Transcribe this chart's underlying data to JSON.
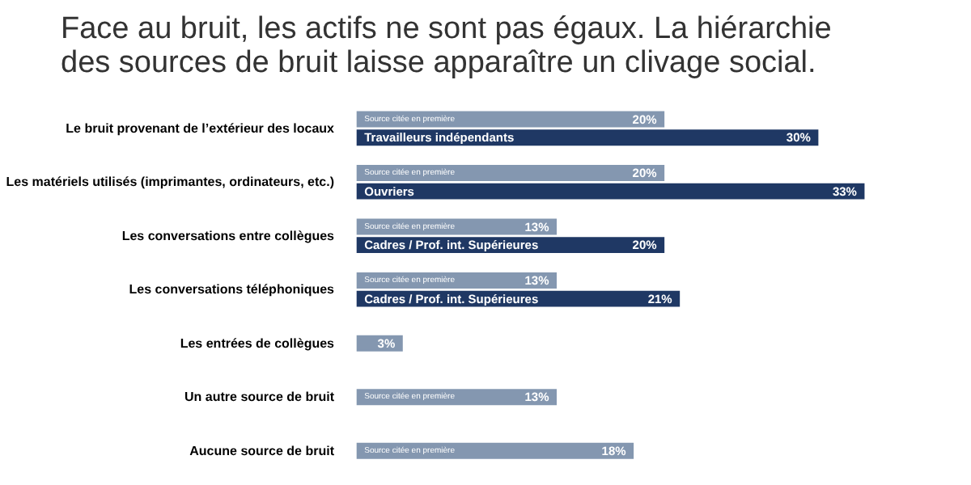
{
  "chart_data": {
    "type": "bar",
    "orientation": "horizontal",
    "title": "Face au bruit, les actifs ne sont pas égaux. La hiérarchie des sources de bruit laisse apparaître un clivage social.",
    "categories": [
      "Le bruit provenant de l’extérieur des locaux",
      "Les matériels utilisés (imprimantes, ordinateurs, etc.)",
      "Les conversations entre collègues",
      "Les conversations téléphoniques",
      "Les entrées de collègues",
      "Un autre source de bruit",
      "Aucune source de bruit"
    ],
    "series": [
      {
        "name": "Source citée en première",
        "color": "#8497b0",
        "values": [
          20,
          20,
          13,
          13,
          3,
          13,
          18
        ],
        "value_labels": [
          "20%",
          "20%",
          "13%",
          "13%",
          "3%",
          "13%",
          "18%"
        ]
      },
      {
        "color": "#1f3864",
        "values": [
          30,
          33,
          20,
          21,
          null,
          null,
          null
        ],
        "value_labels": [
          "30%",
          "33%",
          "20%",
          "21%",
          null,
          null,
          null
        ]
      }
    ],
    "annotations": [
      {
        "text": "Travailleurs indépendants",
        "y": "Le bruit provenant de l’extérieur des locaux"
      },
      {
        "text": "Ouvriers",
        "y": "Les matériels utilisés (imprimantes, ordinateurs, etc.)"
      },
      {
        "text": "Cadres / Prof. int. Supérieures",
        "y": "Les conversations entre collègues"
      },
      {
        "text": "Cadres / Prof. int. Supérieures",
        "y": "Les conversations téléphoniques"
      }
    ],
    "grid": false,
    "tick_labels": "y"
  }
}
